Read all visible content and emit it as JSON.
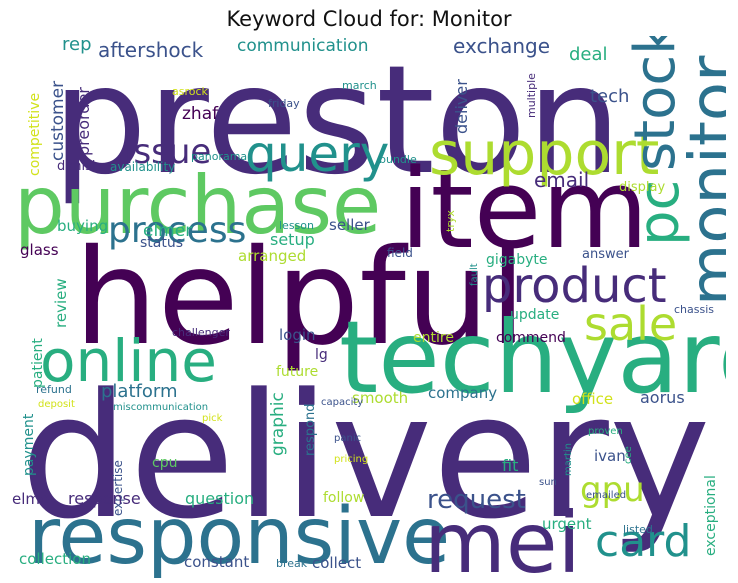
{
  "title": "Keyword Cloud for: Monitor",
  "palette": {
    "dark_purple": "#440154",
    "purple": "#472c7a",
    "blue": "#3b528b",
    "slate": "#2c728e",
    "teal": "#21918c",
    "green_teal": "#28ae80",
    "green": "#5ec962",
    "lime": "#addc30",
    "yellow": "#d2e21b"
  },
  "words": [
    "preston",
    "delivery",
    "helpful",
    "item",
    "purchase",
    "techyard",
    "responsive",
    "mei",
    "monitor",
    "support",
    "stock",
    "pc",
    "sale",
    "online",
    "query",
    "product",
    "card",
    "process",
    "issue",
    "gpu",
    "request",
    "email",
    "exchange",
    "aftershock",
    "communication",
    "rep",
    "deal",
    "tech",
    "customer",
    "preorder",
    "competitive",
    "zhaf",
    "deliver",
    "asrock",
    "march",
    "friday",
    "panorama",
    "multiple",
    "danish",
    "availability",
    "bundle",
    "display",
    "buying",
    "setup",
    "seller",
    "status",
    "lesson",
    "elmer",
    "arranged",
    "tryx",
    "glass",
    "field",
    "gigabyte",
    "answer",
    "review",
    "fault",
    "patient",
    "login",
    "challenger",
    "chassis",
    "update",
    "entire",
    "commend",
    "graphic",
    "lg",
    "future",
    "refund",
    "platform",
    "company",
    "aorus",
    "smooth",
    "deposit",
    "miscommunication",
    "capacity",
    "office",
    "respond",
    "pick",
    "payment",
    "panic",
    "martin",
    "proven",
    "exceptional",
    "expertise",
    "cpu",
    "pricing",
    "fit",
    "ivan",
    "cee",
    "elmo",
    "response",
    "question",
    "follow",
    "sun",
    "emailed",
    "urgent",
    "listed",
    "collection",
    "constant",
    "break",
    "collect"
  ]
}
